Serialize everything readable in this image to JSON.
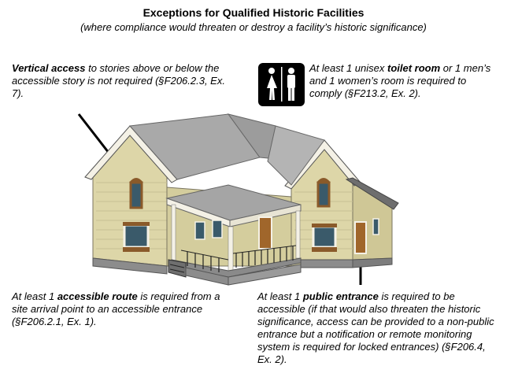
{
  "title": "Exceptions for Qualified Historic Facilities",
  "subtitle": "(where compliance would threaten or destroy a facility’s historic significance)",
  "notes": {
    "vertical": {
      "bold": "Vertical access",
      "text": " to stories above or below the accessible story is not required (§F206.2.3, Ex. 7)."
    },
    "toilet": {
      "pre": "At least 1 unisex ",
      "bold": "toilet room",
      "post": " or 1 men’s and 1 women’s room is required to comply (§F213.2, Ex. 2)."
    },
    "route": {
      "pre": "At least 1 ",
      "bold": "accessible route",
      "post": " is required from a site arrival point to an accessible entrance (§F206.2.1, Ex. 1)."
    },
    "entrance": {
      "pre": "At least 1 ",
      "bold": "public entrance",
      "post": " is required to be accessible (if that would also threaten the historic significance, access can be provided to a non-public entrance but a notification or remote monitoring system is required for locked entrances) (§F206.4, Ex. 2)."
    }
  },
  "icons": {
    "restroom": "unisex-restroom-icon"
  },
  "colors": {
    "siding": "#ddd6a8",
    "roof": "#a9a9a9",
    "trim": "#f4f1e6",
    "door": "#a0662b",
    "foundation": "#8c8c8c"
  }
}
